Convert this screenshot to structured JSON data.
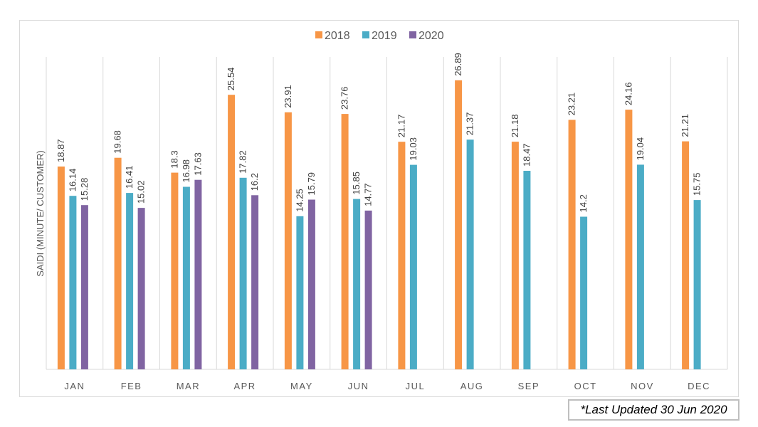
{
  "chart_data": {
    "type": "bar",
    "title": "",
    "xlabel": "",
    "ylabel": "SAIDI (MINUTE/ CUSTOMER)",
    "ylim": [
      0,
      30
    ],
    "grid": "vertical separators between categories",
    "legend": "top-center",
    "categories": [
      "JAN",
      "FEB",
      "MAR",
      "APR",
      "MAY",
      "JUN",
      "JUL",
      "AUG",
      "SEP",
      "OCT",
      "NOV",
      "DEC"
    ],
    "series": [
      {
        "name": "2018",
        "color": "#f79646",
        "values": [
          18.87,
          19.68,
          18.3,
          25.54,
          23.91,
          23.76,
          21.17,
          26.89,
          21.18,
          23.21,
          24.16,
          21.21
        ],
        "labels": [
          "18.87",
          "19.68",
          "18.3",
          "25.54",
          "23.91",
          "23.76",
          "21.17",
          "26.89",
          "21.18",
          "23.21",
          "24.16",
          "21.21"
        ]
      },
      {
        "name": "2019",
        "color": "#4bacc6",
        "values": [
          16.14,
          16.41,
          16.98,
          17.82,
          14.25,
          15.85,
          19.03,
          21.37,
          18.47,
          14.2,
          19.04,
          15.75
        ],
        "labels": [
          "16.14",
          "16.41",
          "16.98",
          "17.82",
          "14.25",
          "15.85",
          "19.03",
          "21.37",
          "18.47",
          "14.2",
          "19.04",
          "15.75"
        ]
      },
      {
        "name": "2020",
        "color": "#8064a2",
        "values": [
          15.28,
          15.02,
          17.63,
          16.2,
          15.79,
          14.77,
          null,
          null,
          null,
          null,
          null,
          null
        ],
        "labels": [
          "15.28",
          "15.02",
          "17.63",
          "16.2",
          "15.79",
          "14.77",
          null,
          null,
          null,
          null,
          null,
          null
        ]
      }
    ]
  },
  "footnote": "*Last Updated 30 Jun 2020"
}
